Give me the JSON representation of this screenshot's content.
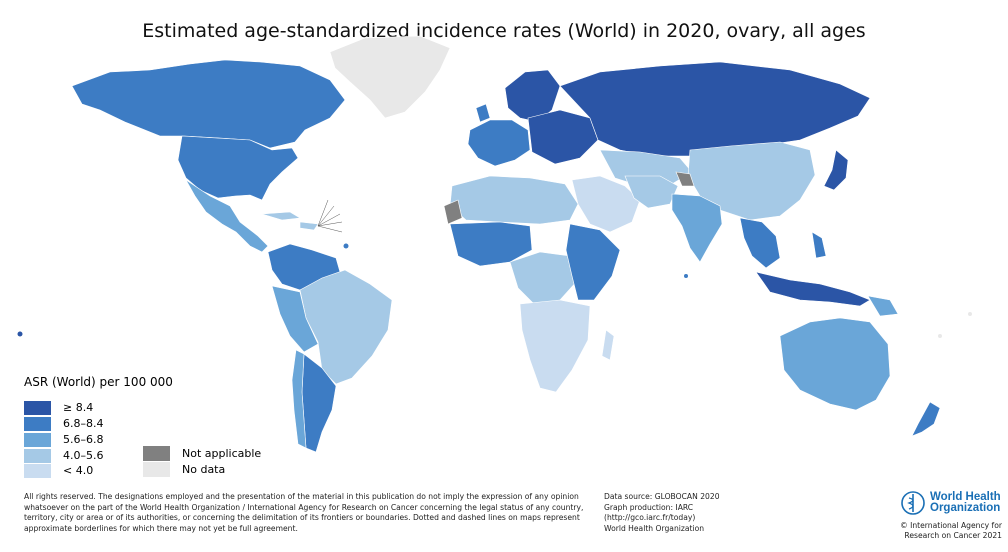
{
  "title": "Estimated age-standardized incidence rates (World) in 2020, ovary, all ages",
  "legend": {
    "title": "ASR (World) per 100 000",
    "items": [
      {
        "label": "≥ 8.4",
        "color": "#2b55a6"
      },
      {
        "label": "6.8–8.4",
        "color": "#3d7cc4"
      },
      {
        "label": "5.6–6.8",
        "color": "#6aa6d8"
      },
      {
        "label": "4.0–5.6",
        "color": "#a5c9e6"
      },
      {
        "label": "< 4.0",
        "color": "#c9dcf0"
      }
    ],
    "not_applicable": {
      "label": "Not applicable",
      "color": "#808080"
    },
    "no_data": {
      "label": "No data",
      "color": "#e8e8e8"
    }
  },
  "footnote": "All rights reserved. The designations employed and the presentation of the material in this publication do not imply the expression of any opinion whatsoever on the part of the World Health Organization / International Agency for Research on Cancer concerning the legal status of any country, territory, city or area or of its authorities, or concerning the delimitation of its frontiers or boundaries. Dotted and dashed lines on maps represent approximate borderlines for which there may not yet be full agreement.",
  "source": {
    "line1": "Data source: GLOBOCAN 2020",
    "line2": "Graph production: IARC",
    "line3": "(http://gco.iarc.fr/today)",
    "line4": "World Health Organization"
  },
  "who": {
    "line1": "World Health",
    "line2": "Organization"
  },
  "iarc": {
    "line1": "© International Agency for",
    "line2": "Research on Cancer 2021"
  }
}
